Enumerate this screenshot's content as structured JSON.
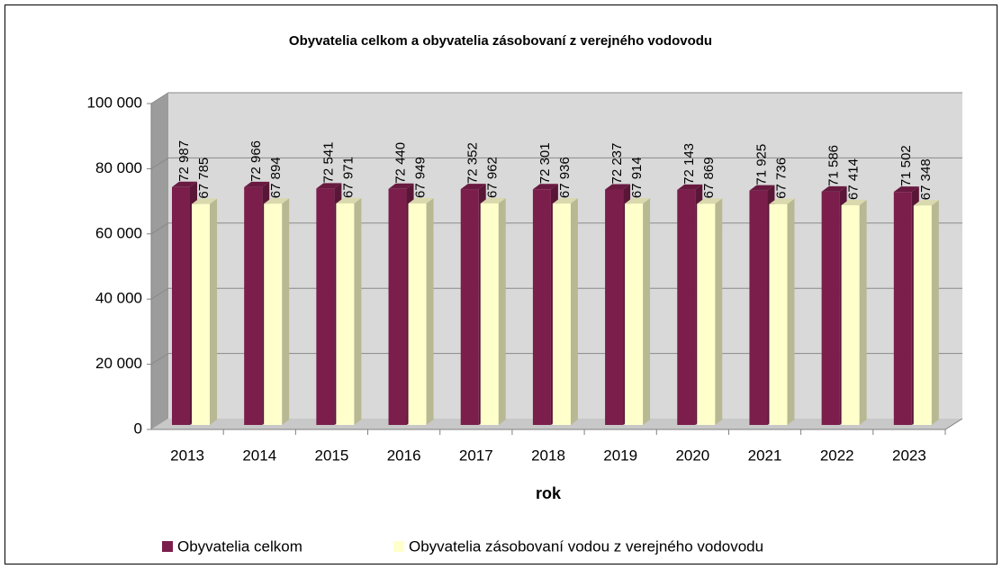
{
  "chart_data": {
    "type": "bar3d",
    "title": "Obyvatelia celkom a obyvatelia zásobovaní z verejného vodovodu",
    "x_label": "rok",
    "categories": [
      "2013",
      "2014",
      "2015",
      "2016",
      "2017",
      "2018",
      "2019",
      "2020",
      "2021",
      "2022",
      "2023"
    ],
    "series": [
      {
        "name": "Obyvatelia celkom",
        "color": "#7b1e4c",
        "values": [
          72987,
          72966,
          72541,
          72440,
          72352,
          72301,
          72237,
          72143,
          71925,
          71586,
          71502
        ],
        "value_labels": [
          "72 987",
          "72 966",
          "72 541",
          "72 440",
          "72 352",
          "72 301",
          "72 237",
          "72 143",
          "71 925",
          "71 586",
          "71 502"
        ]
      },
      {
        "name": "Obyvatelia zásobovaní vodou z verejného vodovodu",
        "color": "#ffffcc",
        "values": [
          67785,
          67894,
          67971,
          67949,
          67962,
          67936,
          67914,
          67869,
          67736,
          67414,
          67348
        ],
        "value_labels": [
          "67 785",
          "67 894",
          "67 971",
          "67 949",
          "67 962",
          "67 936",
          "67 914",
          "67 869",
          "67 736",
          "67 414",
          "67 348"
        ]
      }
    ],
    "ylim": [
      0,
      100000
    ],
    "yticks": [
      0,
      {
        "value": 20000,
        "label": "20 000"
      },
      {
        "value": 40000,
        "label": "40 000"
      },
      {
        "value": 60000,
        "label": "60 000"
      },
      {
        "value": 80000,
        "label": "80 000"
      },
      {
        "value": 100000,
        "label": "100 000"
      }
    ],
    "grid": true,
    "legend": "bottom"
  }
}
